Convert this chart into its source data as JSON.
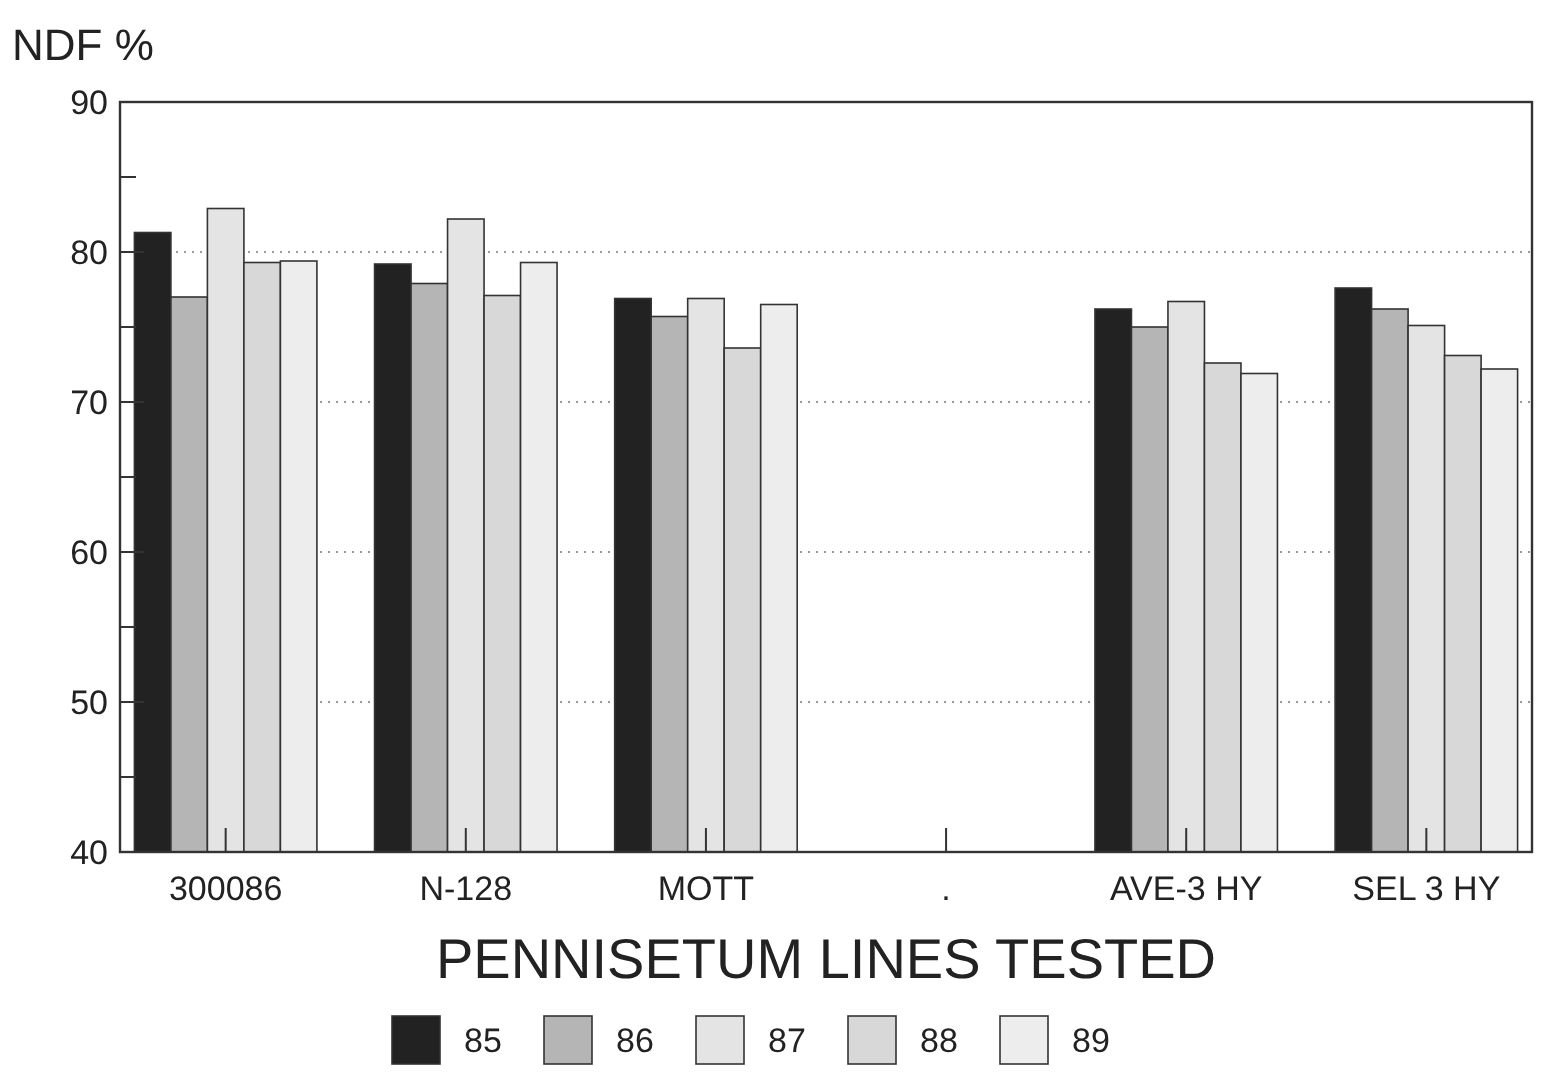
{
  "chart_data": {
    "type": "bar",
    "ylabel": "NDF %",
    "xlabel": "PENNISETUM LINES TESTED",
    "categories": [
      "300086",
      "N-128",
      "MOTT",
      ".",
      "AVE-3 HY",
      "SEL 3 HY"
    ],
    "series": [
      {
        "name": "85",
        "color": "#222222",
        "values": [
          81.3,
          79.2,
          76.9,
          null,
          76.2,
          77.6
        ]
      },
      {
        "name": "86",
        "color": "#b5b5b5",
        "values": [
          77.0,
          77.9,
          75.7,
          null,
          75.0,
          76.2
        ]
      },
      {
        "name": "87",
        "color": "#e4e4e4",
        "values": [
          82.9,
          82.2,
          76.9,
          null,
          76.7,
          75.1
        ]
      },
      {
        "name": "88",
        "color": "#d8d8d8",
        "values": [
          79.3,
          77.1,
          73.6,
          null,
          72.6,
          73.1
        ]
      },
      {
        "name": "89",
        "color": "#ededed",
        "values": [
          79.4,
          79.3,
          76.5,
          null,
          71.9,
          72.2
        ]
      }
    ],
    "ylim": [
      40,
      90
    ],
    "yticks": [
      40,
      {
        "value": 45,
        "label": null
      },
      50,
      {
        "value": 55,
        "label": null
      },
      60,
      {
        "value": 65,
        "label": null
      },
      70,
      {
        "value": 75,
        "label": null
      },
      80,
      {
        "value": 85,
        "label": null
      },
      90
    ],
    "grid": "y",
    "legend": "bottom"
  }
}
